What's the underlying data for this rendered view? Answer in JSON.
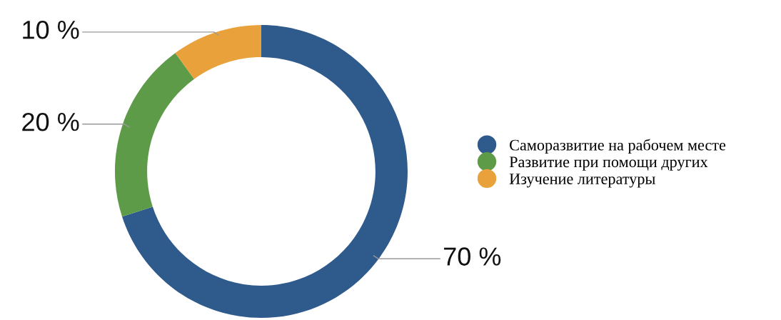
{
  "chart_data": {
    "type": "donut",
    "categories": [
      "Саморазвитие на рабочем месте",
      "Развитие при помощи других",
      "Изучение литературы"
    ],
    "values": [
      70,
      20,
      10
    ],
    "colors": [
      "#2e5a8c",
      "#5e9b48",
      "#e9a23b"
    ],
    "value_labels": [
      "70 %",
      "20 %",
      "10 %"
    ],
    "legend": "right"
  }
}
